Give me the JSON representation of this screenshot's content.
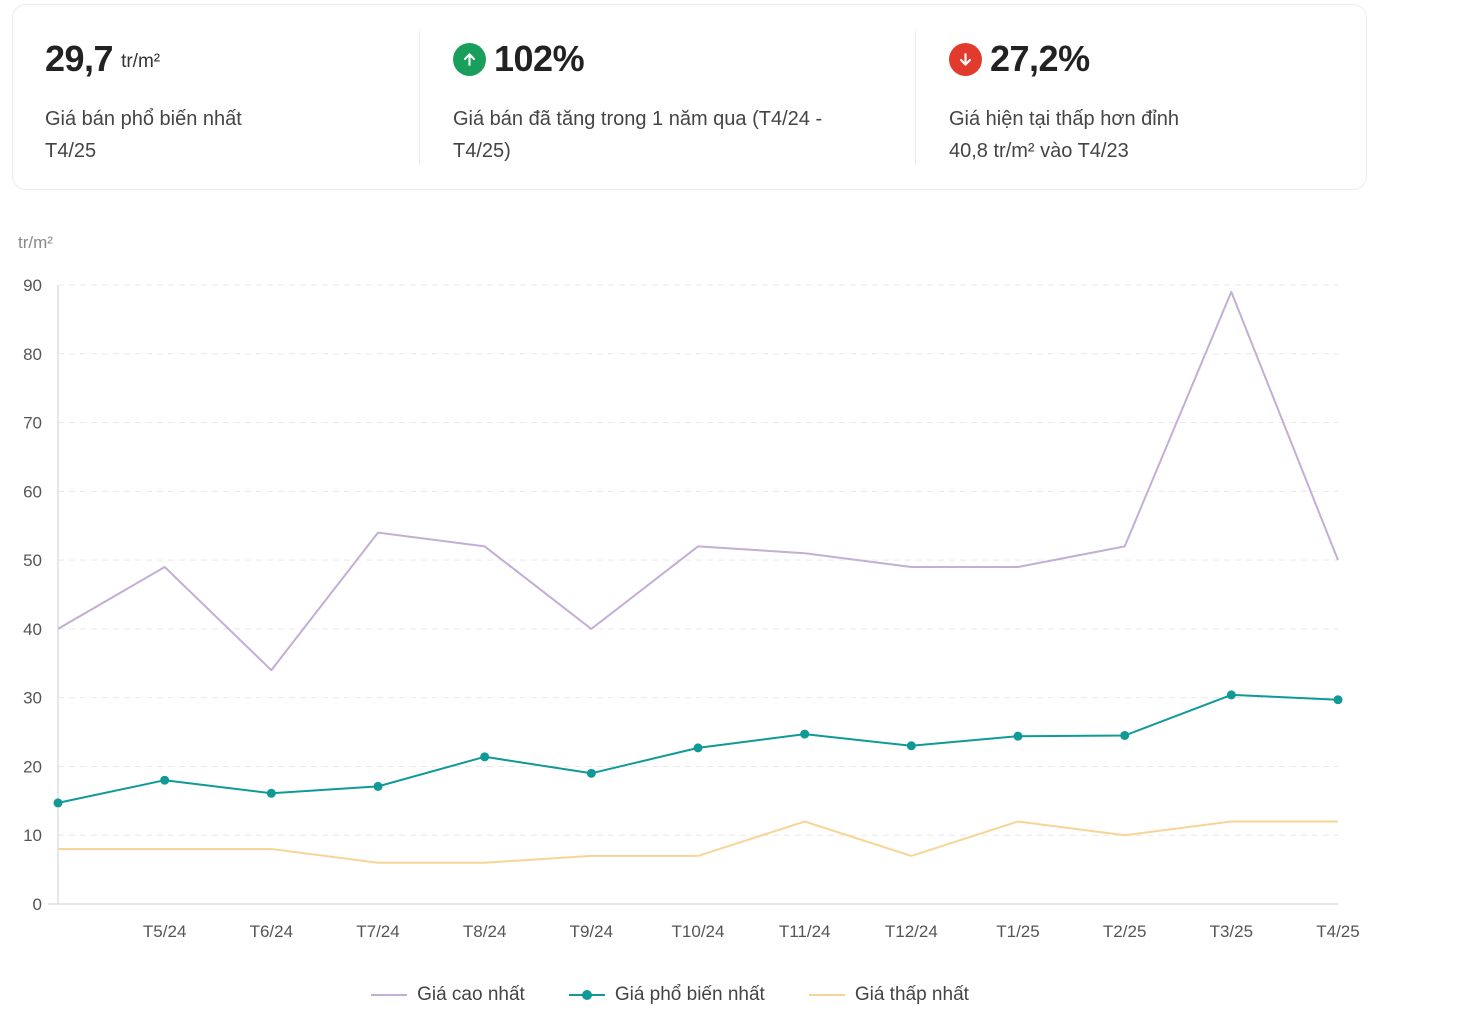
{
  "summary": {
    "popular": {
      "value": "29,7",
      "unit": "tr/m²",
      "desc_line1": "Giá bán phổ biến nhất",
      "desc_line2": "T4/25"
    },
    "growth": {
      "value": "102%",
      "icon": "arrow-up-icon",
      "color": "#1a9e5c",
      "desc_line1": "Giá bán đã tăng trong 1 năm qua (T4/24 -",
      "desc_line2": "T4/25)"
    },
    "peak": {
      "value": "27,2%",
      "icon": "arrow-down-icon",
      "color": "#e23b2e",
      "desc_line1": "Giá hiện tại thấp hơn đỉnh",
      "desc_line2": "40,8 tr/m² vào T4/23"
    }
  },
  "chart_data": {
    "type": "line",
    "ylabel": "tr/m²",
    "ylim": [
      0,
      90
    ],
    "yticks": [
      0,
      10,
      20,
      30,
      40,
      50,
      60,
      70,
      80,
      90
    ],
    "categories": [
      "",
      "T5/24",
      "T6/24",
      "T7/24",
      "T8/24",
      "T9/24",
      "T10/24",
      "T11/24",
      "T12/24",
      "T1/25",
      "T2/25",
      "T3/25",
      "T4/25"
    ],
    "grid": true,
    "legend_position": "bottom",
    "series": [
      {
        "name": "Giá cao nhất",
        "color": "#c3aed6",
        "markers": false,
        "values": [
          40,
          49,
          34,
          54,
          52,
          40,
          52,
          51,
          49,
          49,
          52,
          89,
          50
        ]
      },
      {
        "name": "Giá phổ biến nhất",
        "color": "#0f9a98",
        "markers": true,
        "values": [
          14.7,
          18,
          16.1,
          17.1,
          21.4,
          19,
          22.7,
          24.7,
          23,
          24.4,
          24.5,
          30.4,
          29.7
        ]
      },
      {
        "name": "Giá thấp nhất",
        "color": "#f6d596",
        "markers": false,
        "values": [
          8,
          8,
          8,
          6,
          6,
          7,
          7,
          12,
          7,
          12,
          10,
          12,
          12
        ]
      }
    ]
  }
}
